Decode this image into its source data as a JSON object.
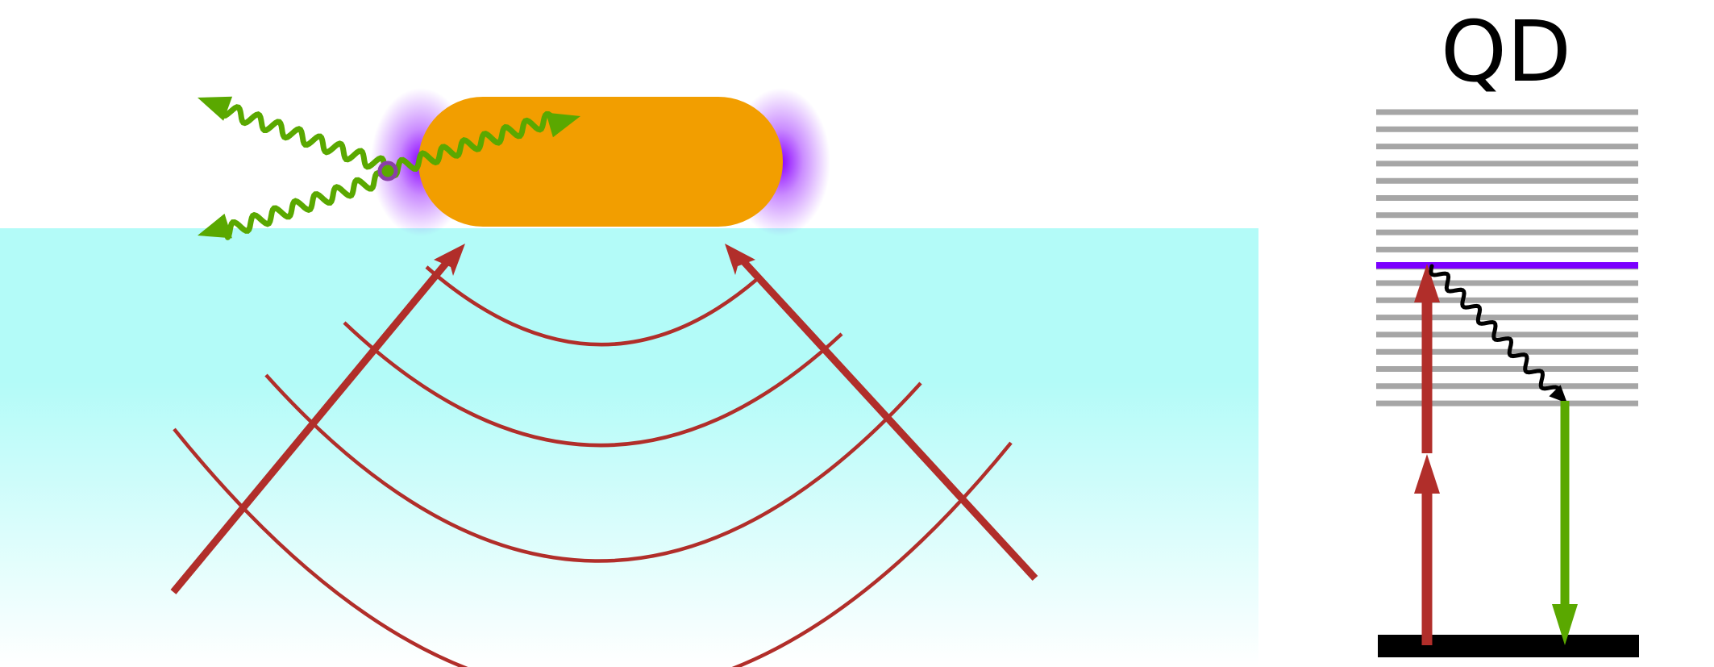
{
  "labels": {
    "qd": "QD"
  },
  "colors": {
    "water_top": "#b3fbf8",
    "water_bottom": "#ffffff",
    "nanorod": "#f29e00",
    "plasmon_glow": "#8a00ff",
    "acoustic_waves": "#b12e2a",
    "photon": "#5aa800",
    "energy_level": "#a6a6a6",
    "emitting_level": "#7b00ff",
    "ground_state": "#000000",
    "relaxation": "#000000"
  },
  "icons": {
    "photon": "wavy-arrow",
    "acoustic_beam": "straight-arrow",
    "relaxation": "wavy-arrow"
  },
  "qd_diagram": {
    "upper_band_level_count": 10,
    "lower_band_level_count": 8,
    "excitation_steps": 2
  }
}
